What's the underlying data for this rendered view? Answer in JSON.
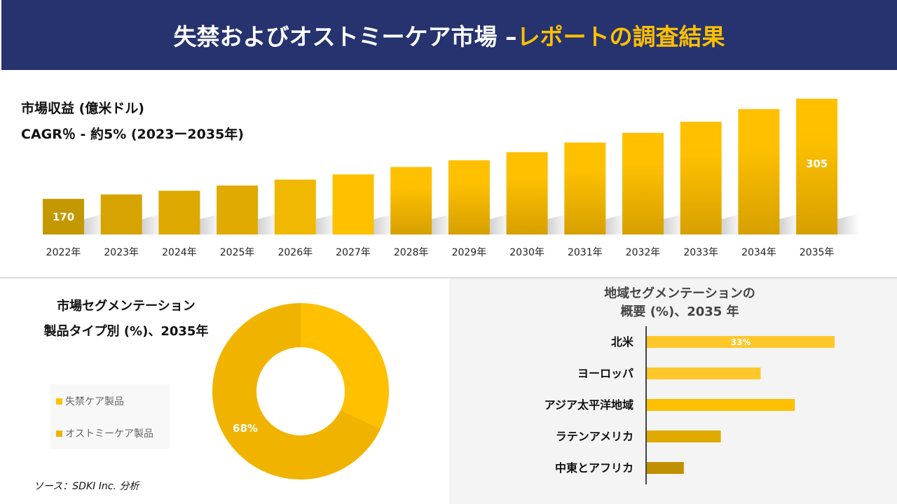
{
  "header": {
    "title_main": "失禁およびオストミーケア市場 –",
    "title_accent": "レポートの調査結果",
    "accent_color": "#ffc000",
    "bg_color": "#26336f"
  },
  "revenue": {
    "title": "市場収益 (億米ドル)",
    "cagr": "CAGR％ - 約5% (2023ー2035年)"
  },
  "chart_data": [
    {
      "type": "bar",
      "categories": [
        "2022年",
        "2023年",
        "2024年",
        "2025年",
        "2026年",
        "2027年",
        "2028年",
        "2029年",
        "2030年",
        "2031年",
        "2032年",
        "2033年",
        "2034年",
        "2035年"
      ],
      "values": [
        170,
        176,
        181,
        188,
        196,
        203,
        213,
        222,
        233,
        246,
        259,
        274,
        291,
        305
      ],
      "data_labels": {
        "0": "170",
        "13": "305"
      },
      "unit": "億米ドル"
    },
    {
      "type": "pie",
      "subtype": "donut",
      "title": "市場セグメンテーション",
      "subtitle": "製品タイプ別 (%)、2035年",
      "labels": [
        "失禁ケア製品",
        "オストミーケア製品"
      ],
      "values": [
        32,
        68
      ],
      "colors": [
        "#ffc000",
        "#f0b400"
      ],
      "data_labels": [
        "",
        "68%"
      ],
      "legend": "left"
    },
    {
      "type": "bar",
      "orientation": "horizontal",
      "title": "地域セグメンテーションの",
      "subtitle": "概要 (%)、2035 年",
      "categories": [
        "北米",
        "ヨーロッパ",
        "アジア太平洋地域",
        "ラテンアメリカ",
        "中東とアフリカ"
      ],
      "values": [
        33,
        20,
        26,
        13,
        6.5
      ],
      "colors": [
        "#ffc72a",
        "#ffc72a",
        "#ffc000",
        "#e0aa00",
        "#bf9000"
      ],
      "data_labels": [
        "33%",
        "",
        "",
        "",
        ""
      ]
    }
  ],
  "source": "ソース：SDKI Inc. 分析"
}
